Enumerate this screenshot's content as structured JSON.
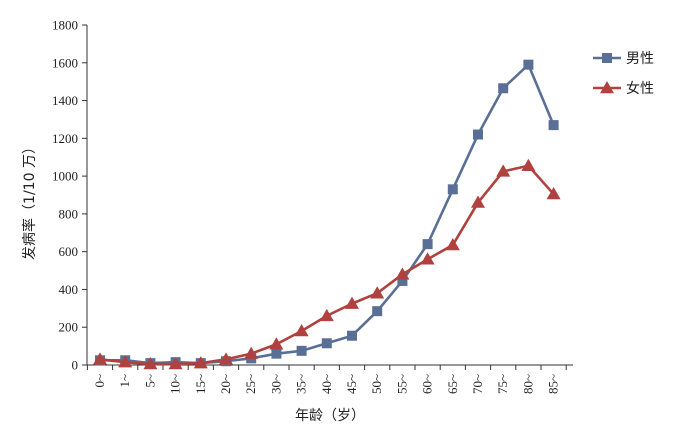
{
  "chart_data": {
    "type": "line",
    "xlabel": "年龄（岁）",
    "ylabel": "发病率（1/10 万）",
    "categories": [
      "0~",
      "1~",
      "5~",
      "10~",
      "15~",
      "20~",
      "25~",
      "30~",
      "35~",
      "40~",
      "45~",
      "50~",
      "55~",
      "60~",
      "65~",
      "70~",
      "75~",
      "80~",
      "85~"
    ],
    "ylim": [
      0,
      1800
    ],
    "yticks": [
      0,
      200,
      400,
      600,
      800,
      1000,
      1200,
      1400,
      1600,
      1800
    ],
    "grid": false,
    "legend_position": "top-right",
    "series": [
      {
        "name": "男性",
        "marker": "square",
        "color": "#5a6f96",
        "values": [
          25,
          25,
          10,
          15,
          10,
          20,
          35,
          60,
          75,
          115,
          155,
          285,
          445,
          640,
          930,
          1220,
          1465,
          1590,
          1270
        ]
      },
      {
        "name": "女性",
        "marker": "triangle",
        "color": "#b0413e",
        "values": [
          30,
          15,
          5,
          5,
          10,
          30,
          60,
          110,
          180,
          260,
          325,
          380,
          480,
          560,
          635,
          860,
          1025,
          1055,
          905
        ]
      }
    ]
  }
}
